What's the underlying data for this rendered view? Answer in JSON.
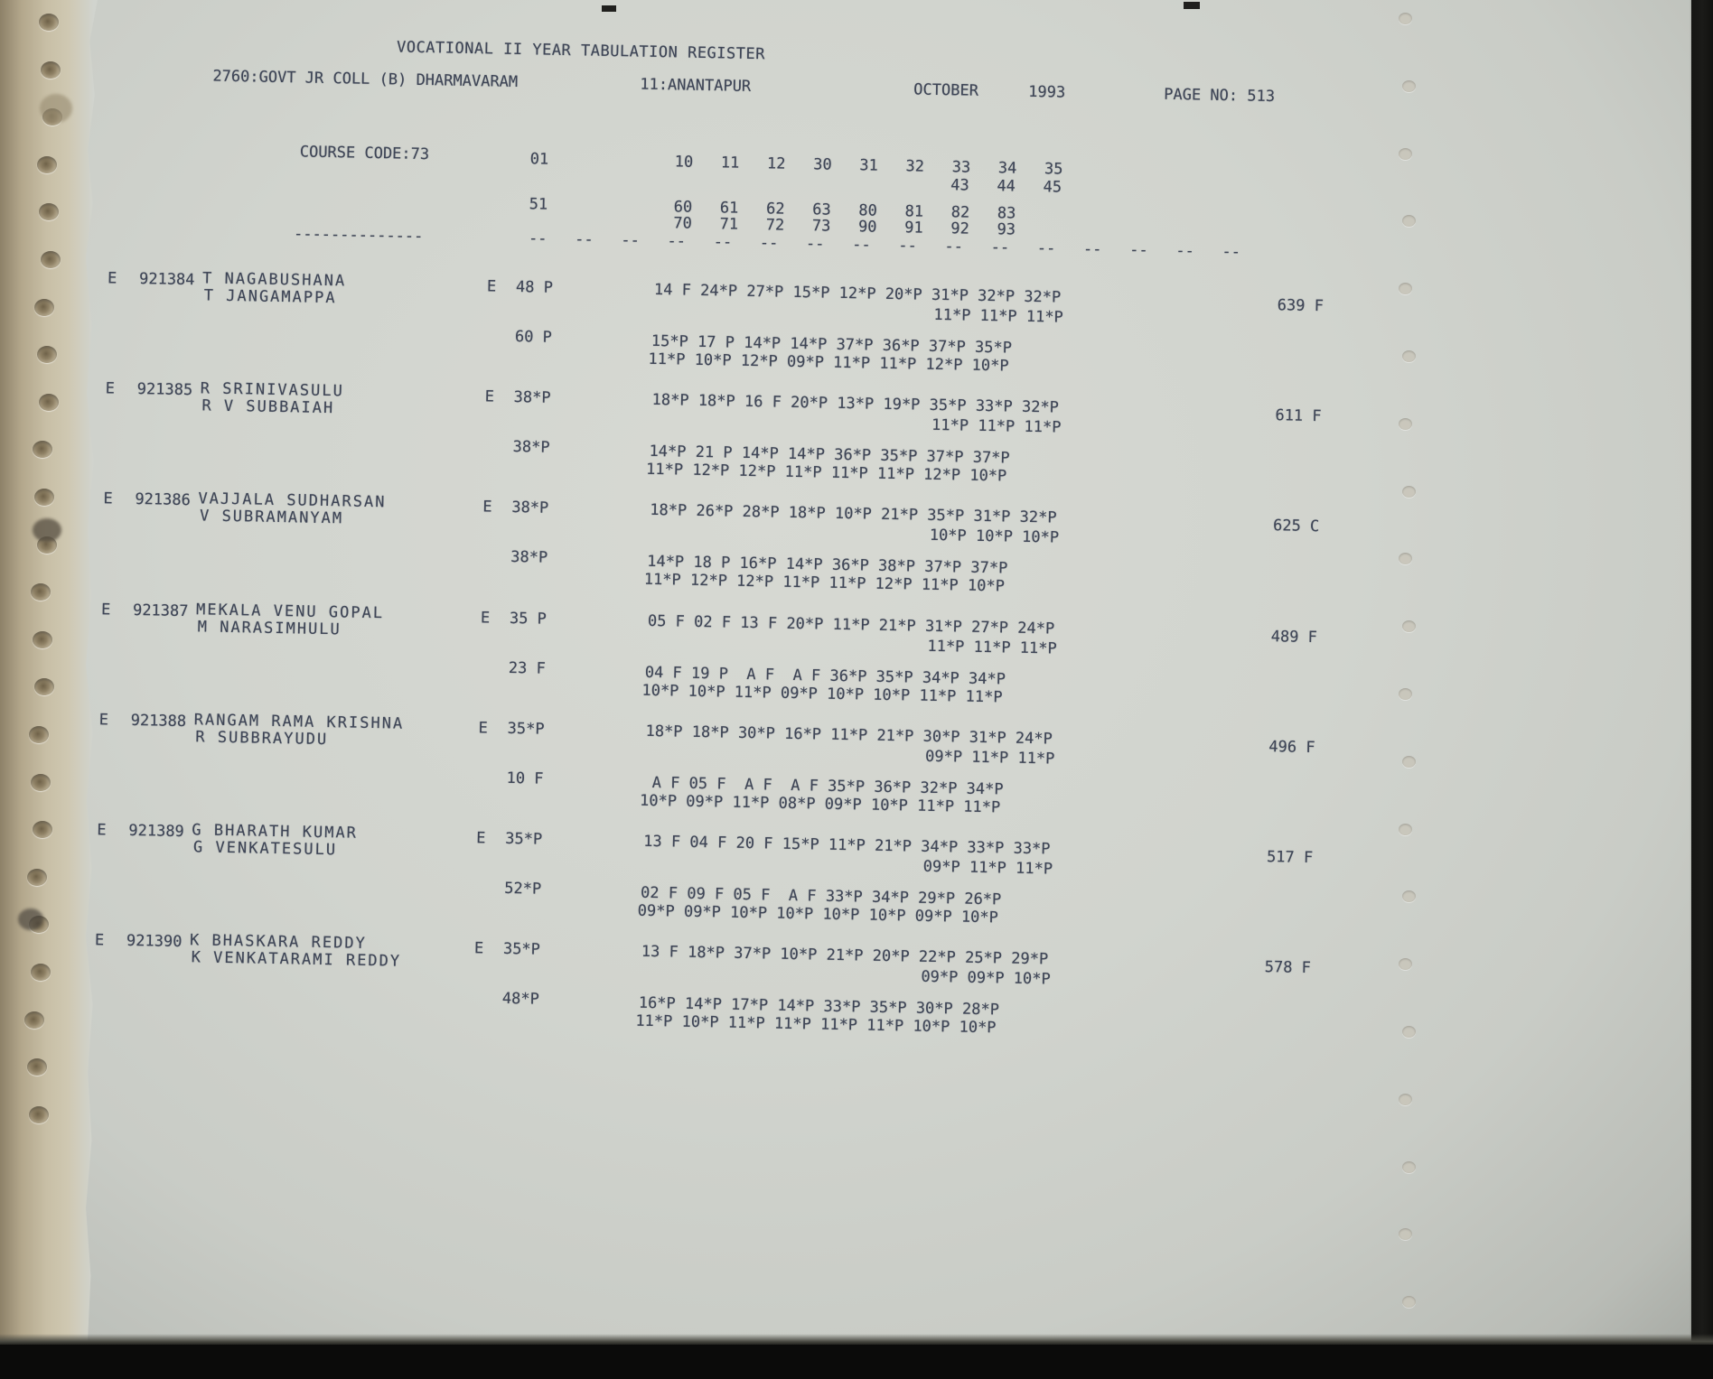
{
  "header": {
    "title": "VOCATIONAL II YEAR TABULATION REGISTER",
    "college": "2760:GOVT JR COLL (B) DHARMAVARAM",
    "district": "11:ANANTAPUR",
    "month": "OCTOBER",
    "year": "1993",
    "page_label": "PAGE NO: 513"
  },
  "course": {
    "code_label": "COURSE CODE:73",
    "group1_code": "01",
    "group1_cols_line1": "10   11   12   30   31   32   33   34   35",
    "group1_cols_line2": "43   44   45",
    "group2_code": "51",
    "group2_cols_line1": "60   61   62   63   80   81   82   83",
    "group2_cols_line2": "70   71   72   73   90   91   92   93",
    "separator_left": "--------------",
    "separator_cols": "--   --   --   --   --   --   --   --   --   --   --   --   --   --   --   --"
  },
  "records": [
    {
      "flag": "E",
      "regno": "921384",
      "name": "T NAGABUSHANA",
      "guardian": "T JANGAMAPPA",
      "p1_flag": "E",
      "p1_label": "48 P",
      "p1_row1": "14 F 24*P 27*P 15*P 12*P 20*P 31*P 32*P 32*P",
      "p1_row2": "11*P 11*P 11*P",
      "total": "639 F",
      "p2_label": "60 P",
      "p2_row1": "15*P 17 P 14*P 14*P 37*P 36*P 37*P 35*P",
      "p2_row2": "11*P 10*P 12*P 09*P 11*P 11*P 12*P 10*P"
    },
    {
      "flag": "E",
      "regno": "921385",
      "name": "R SRINIVASULU",
      "guardian": "R V SUBBAIAH",
      "p1_flag": "E",
      "p1_label": "38*P",
      "p1_row1": "18*P 18*P 16 F 20*P 13*P 19*P 35*P 33*P 32*P",
      "p1_row2": "11*P 11*P 11*P",
      "total": "611 F",
      "p2_label": "38*P",
      "p2_row1": "14*P 21 P 14*P 14*P 36*P 35*P 37*P 37*P",
      "p2_row2": "11*P 12*P 12*P 11*P 11*P 11*P 12*P 10*P"
    },
    {
      "flag": "E",
      "regno": "921386",
      "name": "VAJJALA SUDHARSAN",
      "guardian": "V SUBRAMANYAM",
      "p1_flag": "E",
      "p1_label": "38*P",
      "p1_row1": "18*P 26*P 28*P 18*P 10*P 21*P 35*P 31*P 32*P",
      "p1_row2": "10*P 10*P 10*P",
      "total": "625 C",
      "p2_label": "38*P",
      "p2_row1": "14*P 18 P 16*P 14*P 36*P 38*P 37*P 37*P",
      "p2_row2": "11*P 12*P 12*P 11*P 11*P 12*P 11*P 10*P"
    },
    {
      "flag": "E",
      "regno": "921387",
      "name": "MEKALA VENU GOPAL",
      "guardian": "M NARASIMHULU",
      "p1_flag": "E",
      "p1_label": "35 P",
      "p1_row1": "05 F 02 F 13 F 20*P 11*P 21*P 31*P 27*P 24*P",
      "p1_row2": "11*P 11*P 11*P",
      "total": "489 F",
      "p2_label": "23 F",
      "p2_row1": "04 F 19 P  A F  A F 36*P 35*P 34*P 34*P",
      "p2_row2": "10*P 10*P 11*P 09*P 10*P 10*P 11*P 11*P"
    },
    {
      "flag": "E",
      "regno": "921388",
      "name": "RANGAM RAMA KRISHNA",
      "guardian": "R SUBBRAYUDU",
      "p1_flag": "E",
      "p1_label": "35*P",
      "p1_row1": "18*P 18*P 30*P 16*P 11*P 21*P 30*P 31*P 24*P",
      "p1_row2": "09*P 11*P 11*P",
      "total": "496 F",
      "p2_label": "10 F",
      "p2_row1": " A F 05 F  A F  A F 35*P 36*P 32*P 34*P",
      "p2_row2": "10*P 09*P 11*P 08*P 09*P 10*P 11*P 11*P"
    },
    {
      "flag": "E",
      "regno": "921389",
      "name": "G BHARATH KUMAR",
      "guardian": "G VENKATESULU",
      "p1_flag": "E",
      "p1_label": "35*P",
      "p1_row1": "13 F 04 F 20 F 15*P 11*P 21*P 34*P 33*P 33*P",
      "p1_row2": "09*P 11*P 11*P",
      "total": "517 F",
      "p2_label": "52*P",
      "p2_row1": "02 F 09 F 05 F  A F 33*P 34*P 29*P 26*P",
      "p2_row2": "09*P 09*P 10*P 10*P 10*P 10*P 09*P 10*P"
    },
    {
      "flag": "E",
      "regno": "921390",
      "name": "K BHASKARA REDDY",
      "guardian": "K VENKATARAMI REDDY",
      "p1_flag": "E",
      "p1_label": "35*P",
      "p1_row1": "13 F 18*P 37*P 10*P 21*P 20*P 22*P 25*P 29*P",
      "p1_row2": "09*P 09*P 10*P",
      "total": "578 F",
      "p2_label": "48*P",
      "p2_row1": "16*P 14*P 17*P 14*P 33*P 35*P 30*P 28*P",
      "p2_row2": "11*P 10*P 11*P 11*P 11*P 11*P 10*P 10*P"
    }
  ]
}
